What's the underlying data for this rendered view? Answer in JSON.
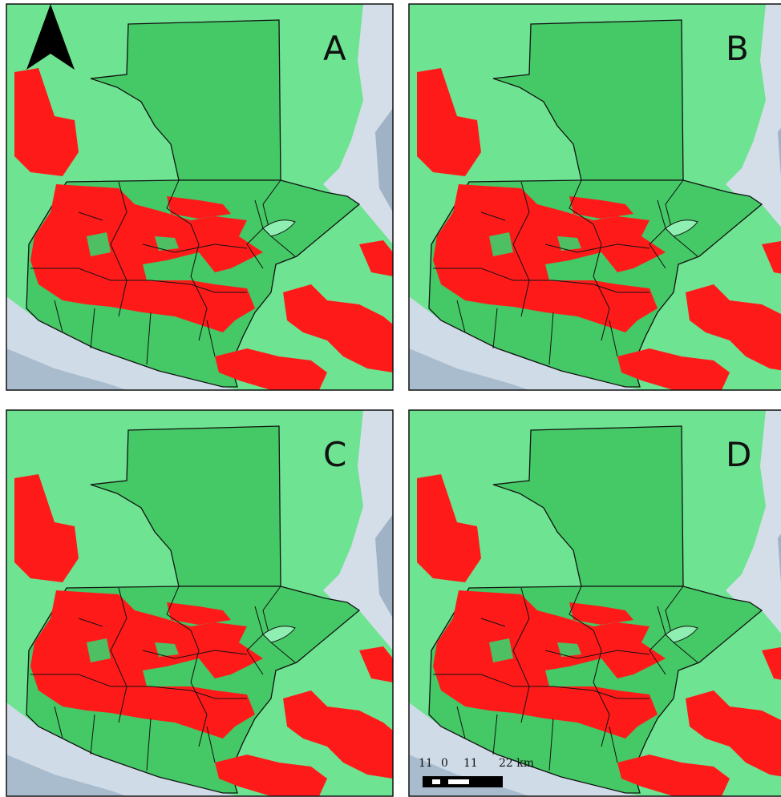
{
  "panels": [
    {
      "label": "A"
    },
    {
      "label": "B"
    },
    {
      "label": "C"
    },
    {
      "label": "D"
    }
  ],
  "scale_bar": {
    "labels": [
      "11",
      "0",
      "11",
      "22 km"
    ]
  }
}
